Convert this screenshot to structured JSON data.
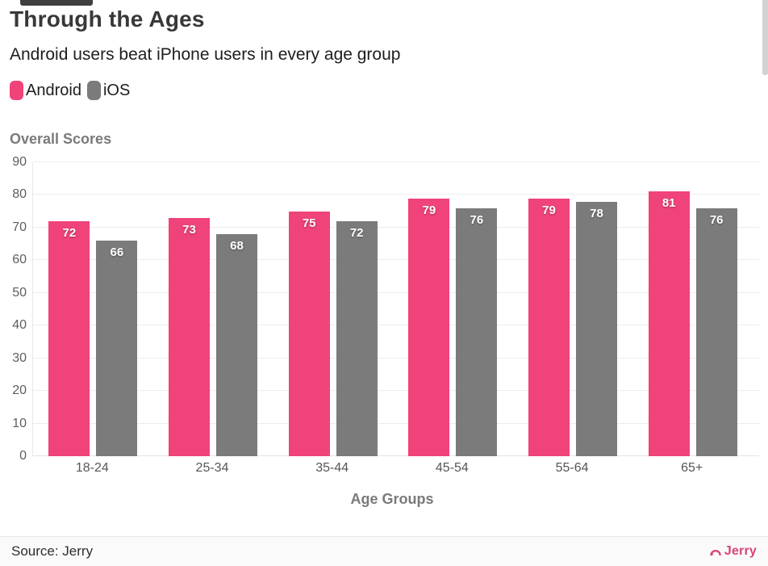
{
  "title": "Through the Ages",
  "subtitle": "Android users beat iPhone users in every age group",
  "legend": [
    {
      "label": "Android",
      "color": "#f0437a"
    },
    {
      "label": "iOS",
      "color": "#7b7b7b"
    }
  ],
  "y_axis_title": "Overall Scores",
  "x_axis_title": "Age Groups",
  "footer": {
    "source": "Source: Jerry",
    "brand": "Jerry"
  },
  "colors": {
    "android": "#f0437a",
    "ios": "#7b7b7b",
    "brand_pink": "#d6457c",
    "gridline": "#ededed",
    "heading_gray": "#7a7a7a"
  },
  "chart_data": {
    "type": "bar",
    "title": "Through the Ages",
    "subtitle": "Android users beat iPhone users in every age group",
    "categories": [
      "18-24",
      "25-34",
      "35-44",
      "45-54",
      "55-64",
      "65+"
    ],
    "series": [
      {
        "name": "Android",
        "color": "#f0437a",
        "values": [
          72,
          73,
          75,
          79,
          79,
          81
        ]
      },
      {
        "name": "iOS",
        "color": "#7b7b7b",
        "values": [
          66,
          68,
          72,
          76,
          78,
          76
        ]
      }
    ],
    "xlabel": "Age Groups",
    "ylabel": "Overall Scores",
    "ylim": [
      0,
      90
    ],
    "yticks": [
      0,
      10,
      20,
      30,
      40,
      50,
      60,
      70,
      80,
      90
    ],
    "grid": true,
    "bar_value_labels": true,
    "legend_position": "top-left"
  }
}
